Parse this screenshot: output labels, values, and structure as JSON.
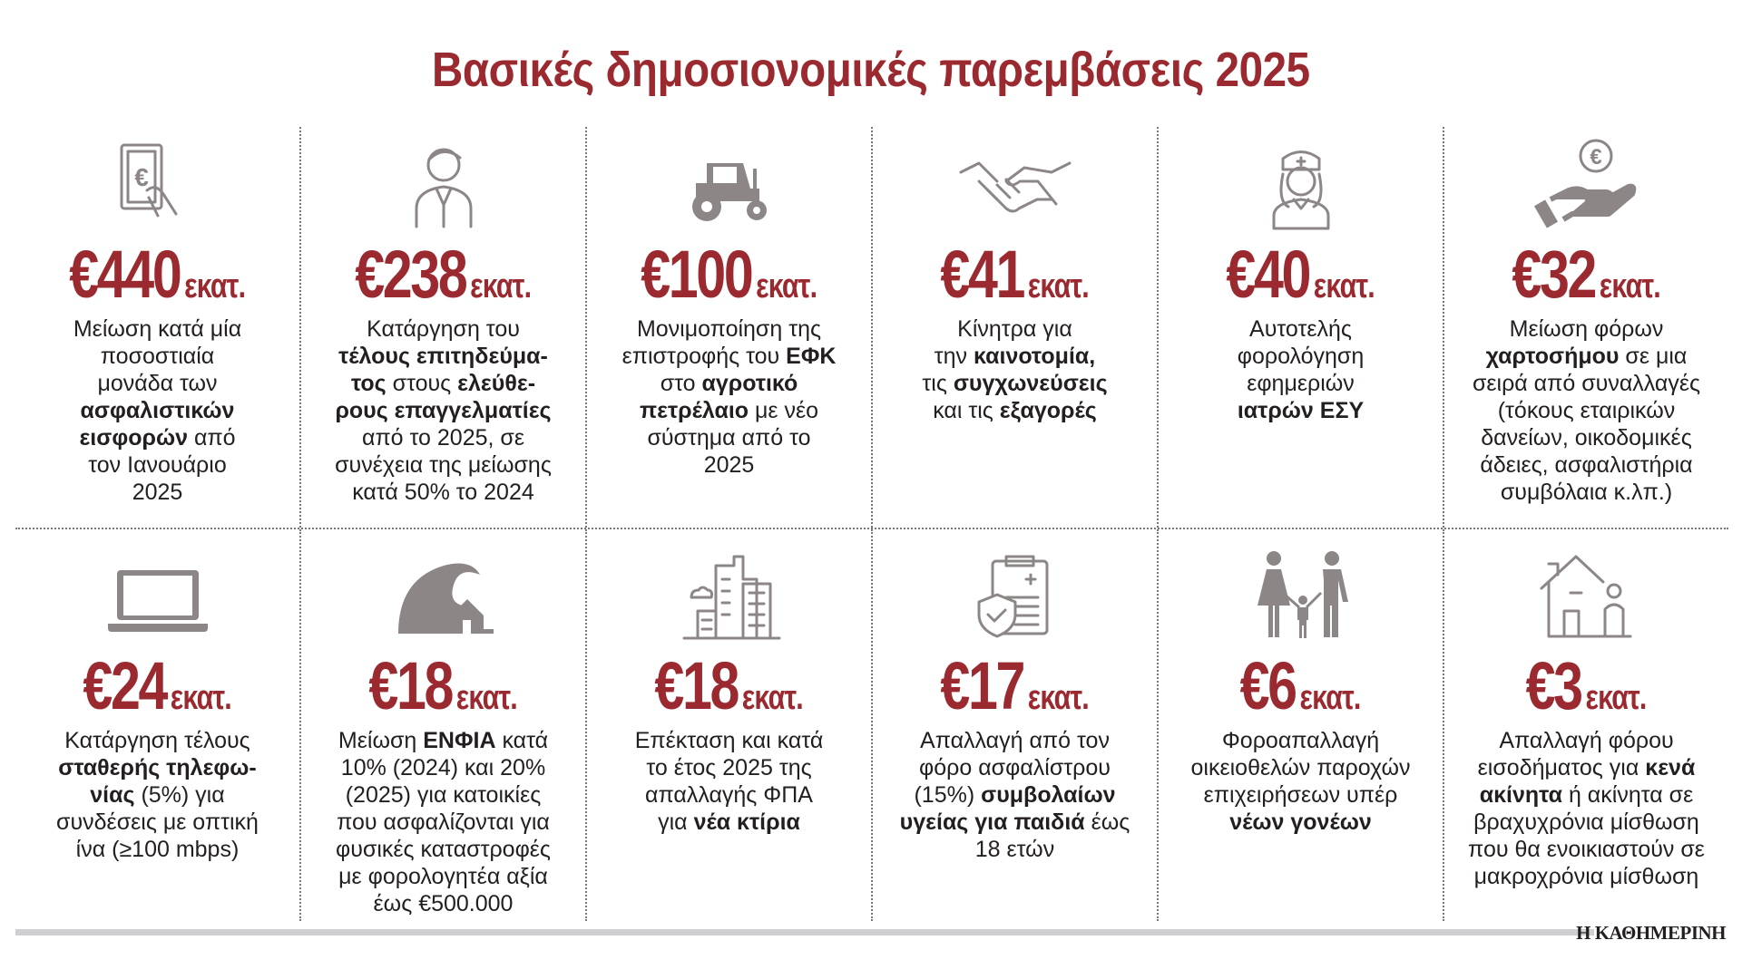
{
  "title": "Βασικές δημοσιονομικές παρεμβάσεις 2025",
  "unit": "εκατ.",
  "brand": "Η ΚΑΘΗΜΕΡΙΝΗ",
  "colors": {
    "accent": "#9b2a30",
    "icon": "#8c8786",
    "divider": "#777777"
  },
  "cards": [
    {
      "icon": "euro-banknote-hand-icon",
      "amount": "€440",
      "lines": [
        [
          {
            "t": "Μείωση κατά μία"
          }
        ],
        [
          {
            "t": "ποσοστιαία"
          }
        ],
        [
          {
            "t": "μονάδα των"
          }
        ],
        [
          {
            "t": "ασφαλιστικών",
            "b": true
          }
        ],
        [
          {
            "t": "εισφορών",
            "b": true
          },
          {
            "t": " από"
          }
        ],
        [
          {
            "t": "τον Ιανουάριο"
          }
        ],
        [
          {
            "t": "2025"
          }
        ]
      ]
    },
    {
      "icon": "professional-person-icon",
      "amount": "€238",
      "lines": [
        [
          {
            "t": "Κατάργηση του"
          }
        ],
        [
          {
            "t": "τέλους επιτηδεύμα-",
            "b": true
          }
        ],
        [
          {
            "t": "τος",
            "b": true
          },
          {
            "t": " στους "
          },
          {
            "t": "ελεύθε-",
            "b": true
          }
        ],
        [
          {
            "t": "ρους επαγγελματίες",
            "b": true
          }
        ],
        [
          {
            "t": "από το 2025, σε"
          }
        ],
        [
          {
            "t": "συνέχεια της μείωσης"
          }
        ],
        [
          {
            "t": "κατά 50% το 2024"
          }
        ]
      ]
    },
    {
      "icon": "tractor-icon",
      "amount": "€100",
      "lines": [
        [
          {
            "t": "Μονιμοποίηση της"
          }
        ],
        [
          {
            "t": "επιστροφής του "
          },
          {
            "t": "ΕΦΚ",
            "b": true
          }
        ],
        [
          {
            "t": "στο "
          },
          {
            "t": "αγροτικό",
            "b": true
          }
        ],
        [
          {
            "t": "πετρέλαιο",
            "b": true
          },
          {
            "t": " με νέο"
          }
        ],
        [
          {
            "t": "σύστημα από το"
          }
        ],
        [
          {
            "t": "2025"
          }
        ]
      ]
    },
    {
      "icon": "handshake-icon",
      "amount": "€41",
      "lines": [
        [
          {
            "t": "Κίνητρα για"
          }
        ],
        [
          {
            "t": "την "
          },
          {
            "t": "καινοτομία,",
            "b": true
          }
        ],
        [
          {
            "t": "τις "
          },
          {
            "t": "συγχωνεύσεις",
            "b": true
          }
        ],
        [
          {
            "t": "και τις "
          },
          {
            "t": "εξαγορές",
            "b": true
          }
        ]
      ]
    },
    {
      "icon": "nurse-doctor-icon",
      "amount": "€40",
      "lines": [
        [
          {
            "t": "Αυτοτελής"
          }
        ],
        [
          {
            "t": "φορολόγηση"
          }
        ],
        [
          {
            "t": "εφημεριών"
          }
        ],
        [
          {
            "t": "ιατρών ΕΣΥ",
            "b": true
          }
        ]
      ]
    },
    {
      "icon": "hand-euro-coin-icon",
      "amount": "€32",
      "lines": [
        [
          {
            "t": "Μείωση φόρων"
          }
        ],
        [
          {
            "t": "χαρτοσήμου",
            "b": true
          },
          {
            "t": " σε μια"
          }
        ],
        [
          {
            "t": "σειρά από συναλλαγές"
          }
        ],
        [
          {
            "t": "(τόκους εταιρικών"
          }
        ],
        [
          {
            "t": "δανείων, οικοδομικές"
          }
        ],
        [
          {
            "t": "άδειες, ασφαλιστήρια"
          }
        ],
        [
          {
            "t": "συμβόλαια κ.λπ.)"
          }
        ]
      ]
    },
    {
      "icon": "laptop-icon",
      "amount": "€24",
      "lines": [
        [
          {
            "t": "Κατάργηση τέλους"
          }
        ],
        [
          {
            "t": "σταθερής τηλεφω-",
            "b": true
          }
        ],
        [
          {
            "t": "νίας",
            "b": true
          },
          {
            "t": " (5%) για"
          }
        ],
        [
          {
            "t": "συνδέσεις με οπτική"
          }
        ],
        [
          {
            "t": "ίνα (≥100 mbps)"
          }
        ]
      ]
    },
    {
      "icon": "wave-house-icon",
      "amount": "€18",
      "lines": [
        [
          {
            "t": "Μείωση "
          },
          {
            "t": "ΕΝΦΙΑ",
            "b": true
          },
          {
            "t": " κατά"
          }
        ],
        [
          {
            "t": "10% (2024) και 20%"
          }
        ],
        [
          {
            "t": "(2025) για κατοικίες"
          }
        ],
        [
          {
            "t": "που ασφαλίζονται για"
          }
        ],
        [
          {
            "t": "φυσικές καταστροφές"
          }
        ],
        [
          {
            "t": "με φορολογητέα αξία"
          }
        ],
        [
          {
            "t": "έως €500.000"
          }
        ]
      ]
    },
    {
      "icon": "buildings-icon",
      "amount": "€18",
      "lines": [
        [
          {
            "t": "Επέκταση και κατά"
          }
        ],
        [
          {
            "t": "το έτος 2025 της"
          }
        ],
        [
          {
            "t": "απαλλαγής ΦΠΑ"
          }
        ],
        [
          {
            "t": "για "
          },
          {
            "t": "νέα κτίρια",
            "b": true
          }
        ]
      ]
    },
    {
      "icon": "health-insurance-clipboard-icon",
      "amount": "€17",
      "lines": [
        [
          {
            "t": "Απαλλαγή από τον"
          }
        ],
        [
          {
            "t": "φόρο ασφαλίστρου"
          }
        ],
        [
          {
            "t": "(15%) "
          },
          {
            "t": "συμβολαίων",
            "b": true
          }
        ],
        [
          {
            "t": "υγείας για παιδιά",
            "b": true
          },
          {
            "t": " έως"
          }
        ],
        [
          {
            "t": "18 ετών"
          }
        ]
      ]
    },
    {
      "icon": "family-icon",
      "amount": "€6",
      "lines": [
        [
          {
            "t": "Φοροαπαλλαγή"
          }
        ],
        [
          {
            "t": "οικειοθελών παροχών"
          }
        ],
        [
          {
            "t": "επιχειρήσεων υπέρ"
          }
        ],
        [
          {
            "t": "νέων γονέων",
            "b": true
          }
        ]
      ]
    },
    {
      "icon": "house-person-icon",
      "amount": "€3",
      "lines": [
        [
          {
            "t": "Απαλλαγή φόρου"
          }
        ],
        [
          {
            "t": "εισοδήματος για "
          },
          {
            "t": "κενά",
            "b": true
          }
        ],
        [
          {
            "t": "ακίνητα",
            "b": true
          },
          {
            "t": " ή ακίνητα σε"
          }
        ],
        [
          {
            "t": "βραχυχρόνια μίσθωση"
          }
        ],
        [
          {
            "t": "που θα ενοικιαστούν σε"
          }
        ],
        [
          {
            "t": "μακροχρόνια μίσθωση"
          }
        ]
      ]
    }
  ]
}
